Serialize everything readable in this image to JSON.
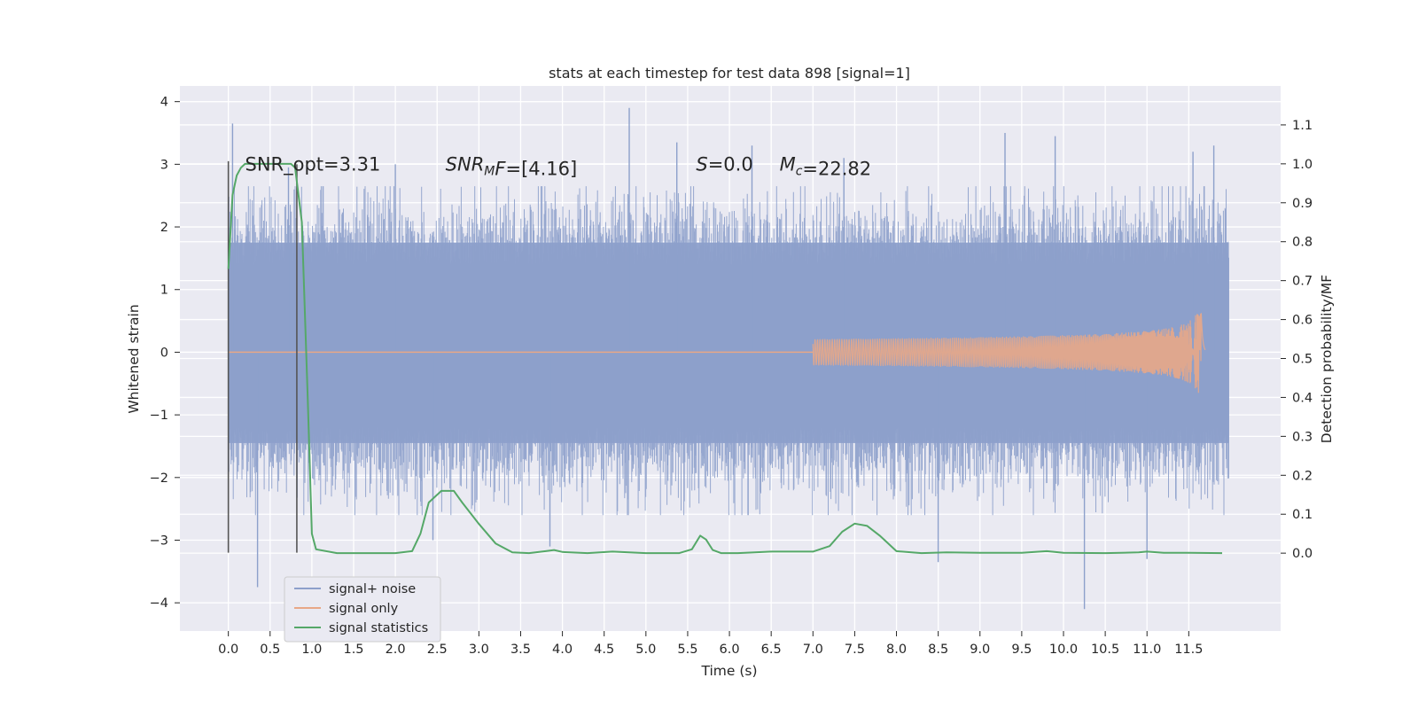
{
  "chart_data": {
    "type": "line",
    "title": "stats at each timestep for test data 898 [signal=1]",
    "xlabel": "Time (s)",
    "ylabel_left": "Whitened strain",
    "ylabel_right": "Detection probability/MF",
    "xlim": [
      -0.58,
      12.6
    ],
    "ylim_left": [
      -4.45,
      4.25
    ],
    "ylim_right": [
      -0.2,
      1.2
    ],
    "x_ticks": [
      "0.0",
      "0.5",
      "1.0",
      "1.5",
      "2.0",
      "2.5",
      "3.0",
      "3.5",
      "4.0",
      "4.5",
      "5.0",
      "5.5",
      "6.0",
      "6.5",
      "7.0",
      "7.5",
      "8.0",
      "8.5",
      "9.0",
      "9.5",
      "10.0",
      "10.5",
      "11.0",
      "11.5"
    ],
    "y_ticks_left": [
      "−4",
      "−3",
      "−2",
      "−1",
      "0",
      "1",
      "2",
      "3",
      "4"
    ],
    "y_ticks_right": [
      "0.0",
      "0.1",
      "0.2",
      "0.3",
      "0.4",
      "0.5",
      "0.6",
      "0.7",
      "0.8",
      "0.9",
      "1.0",
      "1.1"
    ],
    "grid": true,
    "legend_position": "lower-left",
    "annotations": [
      {
        "parts": [
          {
            "t": "SNR_opt=3.31",
            "italic": false
          }
        ]
      },
      {
        "parts": [
          {
            "t": "SNR",
            "italic": true
          },
          {
            "t": "M",
            "italic": true,
            "sub": true
          },
          {
            "t": "F",
            "italic": true
          },
          {
            "t": "=[4.16]",
            "italic": false
          }
        ]
      },
      {
        "parts": [
          {
            "t": "S",
            "italic": true
          },
          {
            "t": "=0.0",
            "italic": false
          }
        ]
      },
      {
        "parts": [
          {
            "t": "M",
            "italic": true
          },
          {
            "t": "c",
            "italic": true,
            "sub": true
          },
          {
            "t": "=22.82",
            "italic": false
          }
        ]
      }
    ],
    "annotation_x": [
      0.2,
      2.6,
      5.6,
      6.6
    ],
    "annotation_y": 3.0,
    "vertical_markers": [
      {
        "x": 0.0,
        "y": [
          -3.2,
          3.05
        ]
      },
      {
        "x": 0.82,
        "y": [
          -3.2,
          3.0
        ]
      }
    ],
    "series": [
      {
        "name": "signal+ noise",
        "color": "#8da0cb",
        "axis": "left",
        "t_range": [
          0.0,
          11.98
        ],
        "band": [
          -1.45,
          1.75
        ],
        "typical_peak": 2.3,
        "peaks": [
          {
            "x": 0.05,
            "y": 3.65
          },
          {
            "x": 0.35,
            "y": -3.75
          },
          {
            "x": 0.72,
            "y": 2.95
          },
          {
            "x": 2.0,
            "y": 3.0
          },
          {
            "x": 2.45,
            "y": -3.0
          },
          {
            "x": 3.85,
            "y": -3.1
          },
          {
            "x": 4.8,
            "y": 3.9
          },
          {
            "x": 5.37,
            "y": 3.35
          },
          {
            "x": 6.27,
            "y": 3.3
          },
          {
            "x": 7.37,
            "y": 3.1
          },
          {
            "x": 8.5,
            "y": -3.35
          },
          {
            "x": 9.3,
            "y": 3.5
          },
          {
            "x": 9.9,
            "y": 3.45
          },
          {
            "x": 10.25,
            "y": -4.1
          },
          {
            "x": 11.55,
            "y": 3.2
          },
          {
            "x": 11.8,
            "y": 3.3
          },
          {
            "x": 11.0,
            "y": -3.3
          }
        ]
      },
      {
        "name": "signal only",
        "color": "#e8a787",
        "axis": "left",
        "t_range": [
          0.0,
          11.7
        ],
        "chirp_start": 7.0,
        "merger_time": 11.65,
        "peak_amplitude": 0.65
      },
      {
        "name": "signal statistics",
        "color": "#55a868",
        "axis": "right",
        "x": [
          0.0,
          0.05,
          0.1,
          0.15,
          0.2,
          0.3,
          0.4,
          0.6,
          0.75,
          0.8,
          0.88,
          0.95,
          1.0,
          1.05,
          1.3,
          2.0,
          2.2,
          2.3,
          2.4,
          2.55,
          2.7,
          2.8,
          3.0,
          3.2,
          3.4,
          3.6,
          3.8,
          3.9,
          4.0,
          4.3,
          4.6,
          4.8,
          5.0,
          5.2,
          5.4,
          5.55,
          5.65,
          5.72,
          5.8,
          5.9,
          6.1,
          6.5,
          7.0,
          7.2,
          7.35,
          7.5,
          7.65,
          7.8,
          8.0,
          8.3,
          8.6,
          9.0,
          9.5,
          9.8,
          10.0,
          10.5,
          10.9,
          11.0,
          11.2,
          11.5,
          11.9
        ],
        "values": [
          0.73,
          0.92,
          0.97,
          0.99,
          1.0,
          1.0,
          1.0,
          1.0,
          1.0,
          0.99,
          0.85,
          0.4,
          0.05,
          0.01,
          0.0,
          0.0,
          0.005,
          0.05,
          0.13,
          0.16,
          0.16,
          0.13,
          0.075,
          0.025,
          0.002,
          0.0,
          0.005,
          0.008,
          0.003,
          0.0,
          0.004,
          0.002,
          0.0,
          0.0,
          0.0,
          0.01,
          0.045,
          0.035,
          0.008,
          0.0,
          0.0,
          0.004,
          0.004,
          0.018,
          0.055,
          0.076,
          0.07,
          0.045,
          0.005,
          0.0,
          0.002,
          0.001,
          0.001,
          0.005,
          0.001,
          0.0,
          0.002,
          0.004,
          0.001,
          0.001,
          0.0
        ]
      }
    ]
  }
}
